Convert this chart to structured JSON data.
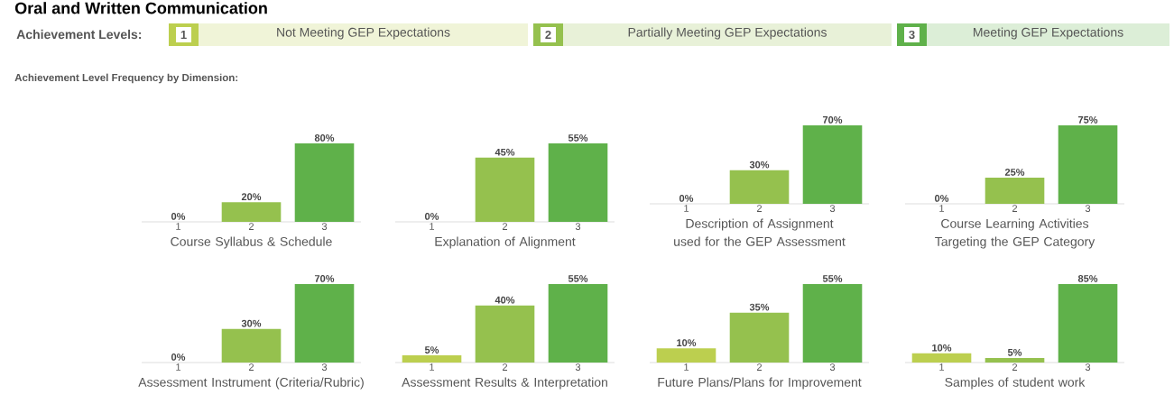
{
  "chart_data": [
    {
      "type": "other",
      "title": "Oral and Written Communication",
      "subtitle": "Achievement Level Frequency by Dimension:",
      "colors": [
        "#bccf4f",
        "#95c14e",
        "#5fb14a"
      ],
      "annotations": [
        "Achievement Levels:",
        "1",
        "Not Meeting GEP Expectations",
        "2",
        "Partially Meeting GEP Expectations",
        "3",
        "Meeting GEP Expectations"
      ]
    },
    {
      "type": "bar",
      "title": "Course Syllabus & Schedule",
      "categories": [
        "1",
        "2",
        "3"
      ],
      "values": [
        0,
        20,
        80
      ],
      "value_labels": [
        "0%",
        "20%",
        "80%"
      ],
      "colors": [
        "#bccf4f",
        "#95c14e",
        "#5fb14a"
      ]
    },
    {
      "type": "bar",
      "title": "Explanation of Alignment",
      "categories": [
        "1",
        "2",
        "3"
      ],
      "values": [
        0,
        45,
        55
      ],
      "value_labels": [
        "0%",
        "45%",
        "55%"
      ],
      "colors": [
        "#bccf4f",
        "#95c14e",
        "#5fb14a"
      ]
    },
    {
      "type": "bar",
      "title": "Description of Assignment used for the GEP Assessment",
      "categories": [
        "1",
        "2",
        "3"
      ],
      "values": [
        0,
        30,
        70
      ],
      "value_labels": [
        "0%",
        "30%",
        "70%"
      ],
      "colors": [
        "#bccf4f",
        "#95c14e",
        "#5fb14a"
      ]
    },
    {
      "type": "bar",
      "title": "Course Learning Activities Targeting the GEP Category",
      "categories": [
        "1",
        "2",
        "3"
      ],
      "values": [
        0,
        25,
        75
      ],
      "value_labels": [
        "0%",
        "25%",
        "75%"
      ],
      "colors": [
        "#bccf4f",
        "#95c14e",
        "#5fb14a"
      ]
    },
    {
      "type": "bar",
      "title": "Assessment Instrument (Criteria/Rubric)",
      "categories": [
        "1",
        "2",
        "3"
      ],
      "values": [
        0,
        30,
        70
      ],
      "value_labels": [
        "0%",
        "30%",
        "70%"
      ],
      "colors": [
        "#bccf4f",
        "#95c14e",
        "#5fb14a"
      ]
    },
    {
      "type": "bar",
      "title": "Assessment Results & Interpretation",
      "categories": [
        "1",
        "2",
        "3"
      ],
      "values": [
        5,
        40,
        55
      ],
      "value_labels": [
        "5%",
        "40%",
        "55%"
      ],
      "colors": [
        "#bccf4f",
        "#95c14e",
        "#5fb14a"
      ]
    },
    {
      "type": "bar",
      "title": "Future Plans/Plans for Improvement",
      "categories": [
        "1",
        "2",
        "3"
      ],
      "values": [
        10,
        35,
        55
      ],
      "value_labels": [
        "10%",
        "35%",
        "55%"
      ],
      "colors": [
        "#bccf4f",
        "#95c14e",
        "#5fb14a"
      ]
    },
    {
      "type": "bar",
      "title": "Samples of student work",
      "categories": [
        "1",
        "2",
        "3"
      ],
      "values": [
        10,
        5,
        85
      ],
      "value_labels": [
        "10%",
        "5%",
        "85%"
      ],
      "colors": [
        "#bccf4f",
        "#95c14e",
        "#5fb14a"
      ]
    }
  ]
}
